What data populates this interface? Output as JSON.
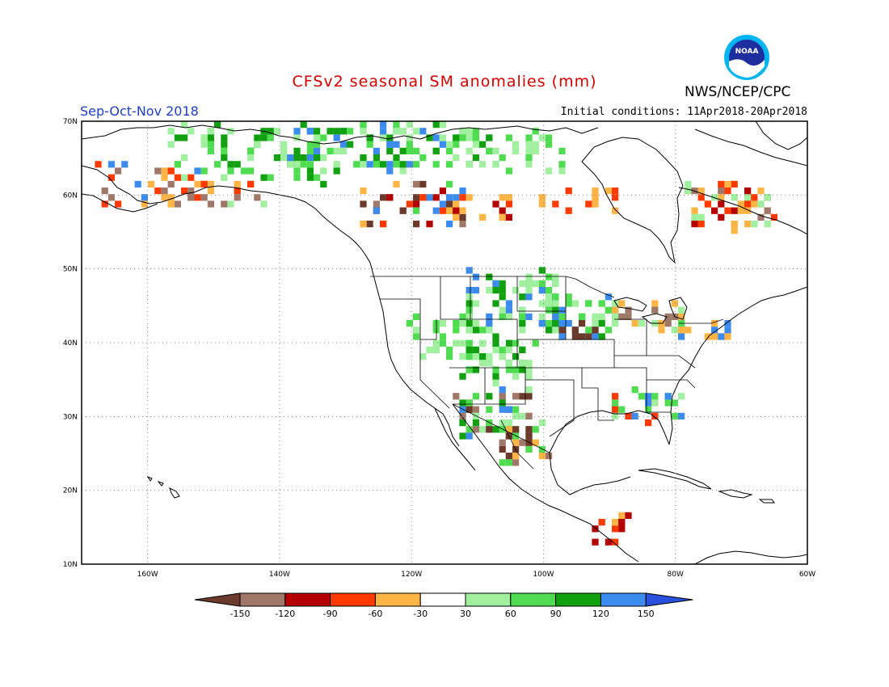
{
  "header": {
    "title": "CFSv2 seasonal SM anomalies (mm)",
    "season": "Sep-Oct-Nov 2018",
    "initial_conditions": "Initial conditions: 11Apr2018-20Apr2018",
    "agency": "NWS/NCEP/CPC",
    "logo_text": "NOAA",
    "logo_icon": "noaa-logo-icon"
  },
  "map": {
    "region": "North America",
    "lon_range": [
      -170,
      -60
    ],
    "lat_range": [
      10,
      70
    ],
    "lon_labels": [
      "160W",
      "140W",
      "120W",
      "100W",
      "80W",
      "60W"
    ],
    "lat_labels": [
      "70N",
      "60N",
      "50N",
      "40N",
      "30N",
      "20N",
      "10N"
    ],
    "grid": "dotted"
  },
  "legend": {
    "tick_labels": [
      "-150",
      "-120",
      "-90",
      "-60",
      "-30",
      "30",
      "60",
      "90",
      "120",
      "150"
    ],
    "colors": [
      "#6b3a2a",
      "#a0786a",
      "#b40000",
      "#ff3a00",
      "#ffb446",
      "#ffffff",
      "#a0f0a0",
      "#50dc50",
      "#10a010",
      "#3c8cf0",
      "#2850dc"
    ]
  }
}
